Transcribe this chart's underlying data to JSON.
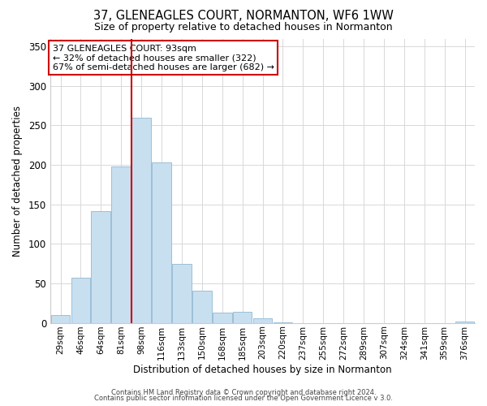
{
  "title": "37, GLENEAGLES COURT, NORMANTON, WF6 1WW",
  "subtitle": "Size of property relative to detached houses in Normanton",
  "xlabel": "Distribution of detached houses by size in Normanton",
  "ylabel": "Number of detached properties",
  "footnote1": "Contains HM Land Registry data © Crown copyright and database right 2024.",
  "footnote2": "Contains public sector information licensed under the Open Government Licence v 3.0.",
  "bar_labels": [
    "29sqm",
    "46sqm",
    "64sqm",
    "81sqm",
    "98sqm",
    "116sqm",
    "133sqm",
    "150sqm",
    "168sqm",
    "185sqm",
    "203sqm",
    "220sqm",
    "237sqm",
    "255sqm",
    "272sqm",
    "289sqm",
    "307sqm",
    "324sqm",
    "341sqm",
    "359sqm",
    "376sqm"
  ],
  "bar_values": [
    10,
    57,
    142,
    198,
    260,
    203,
    75,
    41,
    13,
    14,
    6,
    1,
    0,
    0,
    0,
    0,
    0,
    0,
    0,
    0,
    2
  ],
  "bar_color": "#c8dff0",
  "bar_edge_color": "#9bbfd8",
  "vline_x": 3.5,
  "vline_color": "#cc0000",
  "annotation_title": "37 GLENEAGLES COURT: 93sqm",
  "annotation_line1": "← 32% of detached houses are smaller (322)",
  "annotation_line2": "67% of semi-detached houses are larger (682) →",
  "annotation_box_color": "#ffffff",
  "annotation_box_edge": "#cc0000",
  "ylim": [
    0,
    360
  ],
  "yticks": [
    0,
    50,
    100,
    150,
    200,
    250,
    300,
    350
  ],
  "background_color": "#ffffff",
  "grid_color": "#d8d8d8"
}
